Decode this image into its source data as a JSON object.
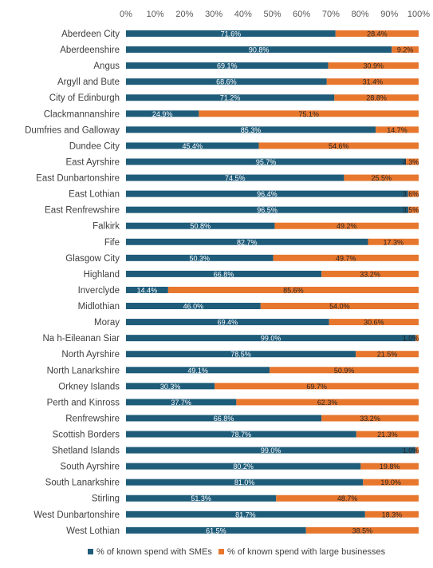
{
  "chart_data": {
    "type": "bar",
    "stacked": true,
    "orientation": "horizontal",
    "percent_stacked": true,
    "x_axis": {
      "min": 0,
      "max": 100,
      "tick_labels": [
        "0%",
        "10%",
        "20%",
        "30%",
        "40%",
        "50%",
        "60%",
        "70%",
        "80%",
        "90%",
        "100%"
      ],
      "position": "top"
    },
    "grid": false,
    "legend": {
      "placement": "bottom"
    },
    "categories": [
      "Aberdeen City",
      "Aberdeenshire",
      "Angus",
      "Argyll and Bute",
      "City of Edinburgh",
      "Clackmannanshire",
      "Dumfries and Galloway",
      "Dundee City",
      "East Ayrshire",
      "East Dunbartonshire",
      "East Lothian",
      "East Renfrewshire",
      "Falkirk",
      "Fife",
      "Glasgow City",
      "Highland",
      "Inverclyde",
      "Midlothian",
      "Moray",
      "Na h-Eileanan Siar",
      "North Ayrshire",
      "North Lanarkshire",
      "Orkney Islands",
      "Perth and Kinross",
      "Renfrewshire",
      "Scottish Borders",
      "Shetland Islands",
      "South Ayrshire",
      "South Lanarkshire",
      "Stirling",
      "West Dunbartonshire",
      "West Lothian"
    ],
    "series": [
      {
        "name": "% of known spend with SMEs",
        "color": "#1F5C7A",
        "values": [
          71.6,
          90.8,
          69.1,
          68.6,
          71.2,
          24.9,
          85.3,
          45.4,
          95.7,
          74.5,
          96.4,
          96.5,
          50.8,
          82.7,
          50.3,
          66.8,
          14.4,
          46.0,
          69.4,
          99.0,
          78.5,
          49.1,
          30.3,
          37.7,
          66.8,
          78.7,
          99.0,
          80.2,
          81.0,
          51.3,
          81.7,
          61.5
        ],
        "labels": [
          "71.6%",
          "90.8%",
          "69.1%",
          "68.6%",
          "71.2%",
          "24.9%",
          "85.3%",
          "45.4%",
          "95.7%",
          "74.5%",
          "96.4%",
          "96.5%",
          "50.8%",
          "82.7%",
          "50.3%",
          "66.8%",
          "14.4%",
          "46.0%",
          "69.4%",
          "99.0%",
          "78.5%",
          "49.1%",
          "30.3%",
          "37.7%",
          "66.8%",
          "78.7%",
          "99.0%",
          "80.2%",
          "81.0%",
          "51.3%",
          "81.7%",
          "61.5%"
        ]
      },
      {
        "name": "% of known spend with large businesses",
        "color": "#E8772E",
        "values": [
          28.4,
          9.2,
          30.9,
          31.4,
          28.8,
          75.1,
          14.7,
          54.6,
          4.3,
          25.5,
          3.6,
          3.5,
          49.2,
          17.3,
          49.7,
          33.2,
          85.6,
          54.0,
          30.6,
          1.0,
          21.5,
          50.9,
          69.7,
          62.3,
          33.2,
          21.3,
          1.0,
          19.8,
          19.0,
          48.7,
          18.3,
          38.5
        ],
        "labels": [
          "28.4%",
          "9.2%",
          "30.9%",
          "31.4%",
          "28.8%",
          "75.1%",
          "14.7%",
          "54.6%",
          "4.3%",
          "25.5%",
          "3.6%",
          "3.5%",
          "49.2%",
          "17.3%",
          "49.7%",
          "33.2%",
          "85.6%",
          "54.0%",
          "30.6%",
          "1.0%",
          "21.5%",
          "50.9%",
          "69.7%",
          "62.3%",
          "33.2%",
          "21.3%",
          "1.0%",
          "19.8%",
          "19.0%",
          "48.7%",
          "18.3%",
          "38.5%"
        ]
      }
    ]
  }
}
